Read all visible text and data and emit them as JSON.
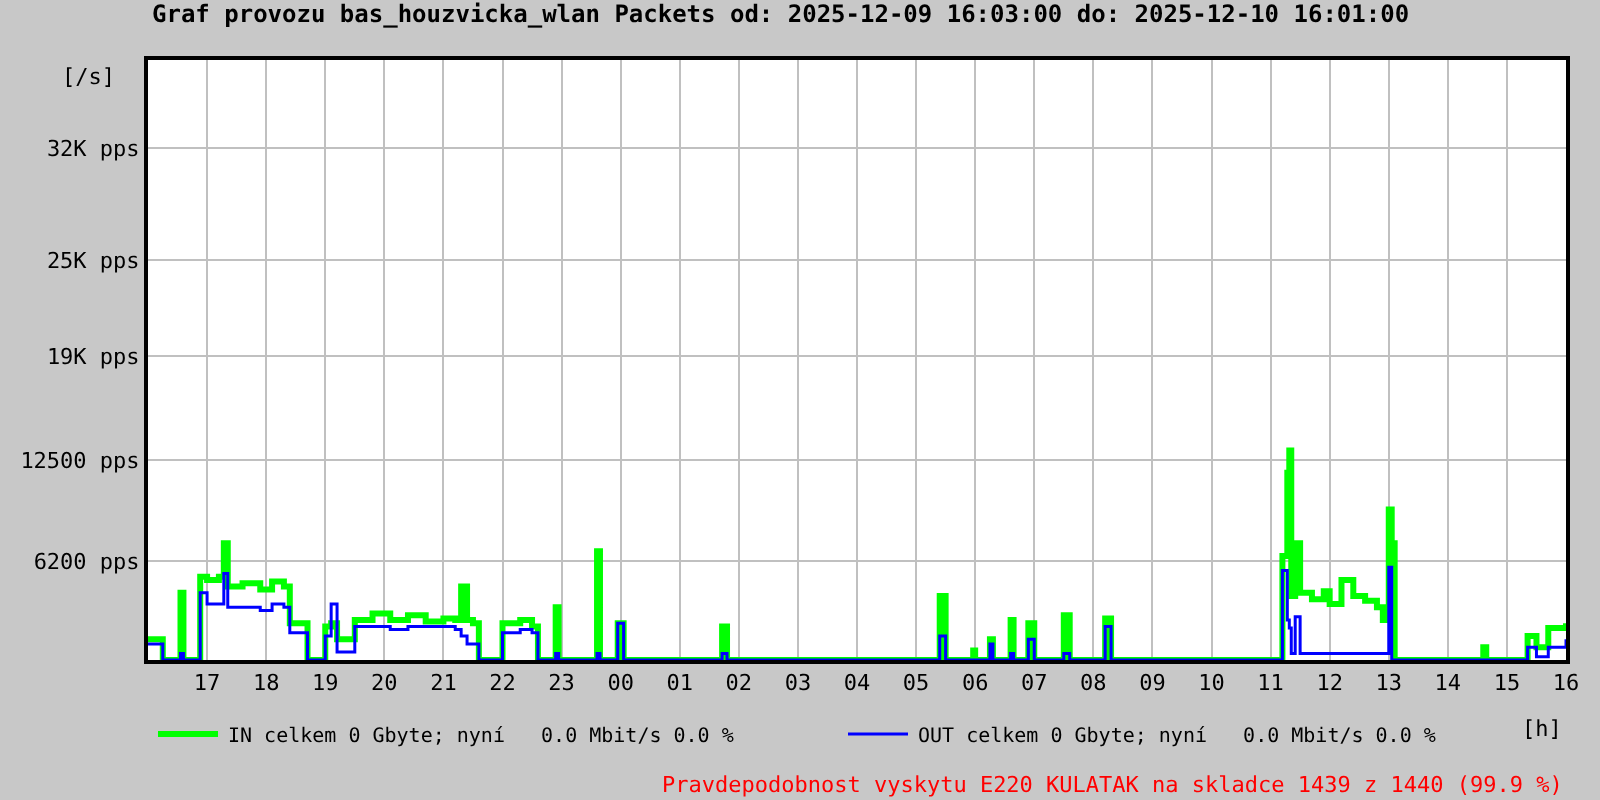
{
  "chart_data": {
    "type": "step",
    "title": "Graf provozu bas_houzvicka_wlan Packets od: 2025-12-09 16:03:00 do: 2025-12-10 16:01:00",
    "ylabel": "[/s]",
    "xlabel": "[h]",
    "x": [
      "2025-12-09T16:00",
      "2025-12-09T16:12",
      "2025-12-09T16:15",
      "2025-12-09T16:30",
      "2025-12-09T16:33",
      "2025-12-09T16:36",
      "2025-12-09T16:51",
      "2025-12-09T16:53",
      "2025-12-09T17:00",
      "2025-12-09T17:12",
      "2025-12-09T17:17",
      "2025-12-09T17:21",
      "2025-12-09T17:36",
      "2025-12-09T17:54",
      "2025-12-09T18:06",
      "2025-12-09T18:18",
      "2025-12-09T18:24",
      "2025-12-09T18:36",
      "2025-12-09T18:42",
      "2025-12-09T18:57",
      "2025-12-09T19:00",
      "2025-12-09T19:06",
      "2025-12-09T19:12",
      "2025-12-09T19:24",
      "2025-12-09T19:30",
      "2025-12-09T19:48",
      "2025-12-09T20:06",
      "2025-12-09T20:24",
      "2025-12-09T20:42",
      "2025-12-09T21:00",
      "2025-12-09T21:12",
      "2025-12-09T21:18",
      "2025-12-09T21:24",
      "2025-12-09T21:30",
      "2025-12-09T21:36",
      "2025-12-09T21:57",
      "2025-12-09T22:00",
      "2025-12-09T22:18",
      "2025-12-09T22:30",
      "2025-12-09T22:36",
      "2025-12-09T22:51",
      "2025-12-09T22:54",
      "2025-12-09T22:57",
      "2025-12-09T23:33",
      "2025-12-09T23:36",
      "2025-12-09T23:39",
      "2025-12-09T23:54",
      "2025-12-09T23:57",
      "2025-12-10T00:03",
      "2025-12-10T01:42",
      "2025-12-10T01:43",
      "2025-12-10T01:48",
      "2025-12-10T05:21",
      "2025-12-10T05:24",
      "2025-12-10T05:30",
      "2025-12-10T05:58",
      "2025-12-10T06:00",
      "2025-12-10T06:15",
      "2025-12-10T06:18",
      "2025-12-10T06:36",
      "2025-12-10T06:39",
      "2025-12-10T06:54",
      "2025-12-10T07:00",
      "2025-12-10T07:30",
      "2025-12-10T07:36",
      "2025-12-10T08:12",
      "2025-12-10T08:18",
      "2025-12-10T11:06",
      "2025-12-10T11:12",
      "2025-12-10T11:17",
      "2025-12-10T11:19",
      "2025-12-10T11:21",
      "2025-12-10T11:25",
      "2025-12-10T11:30",
      "2025-12-10T11:42",
      "2025-12-10T11:54",
      "2025-12-10T12:00",
      "2025-12-10T12:12",
      "2025-12-10T12:24",
      "2025-12-10T12:36",
      "2025-12-10T12:48",
      "2025-12-10T12:54",
      "2025-12-10T13:00",
      "2025-12-10T13:03",
      "2025-12-10T13:06",
      "2025-12-10T14:36",
      "2025-12-10T14:39",
      "2025-12-10T15:18",
      "2025-12-10T15:21",
      "2025-12-10T15:30",
      "2025-12-10T15:42",
      "2025-12-10T16:00"
    ],
    "series": [
      {
        "name": "IN celkem 0 Gbyte; nyní   0.0 Mbit/s 0.0 %",
        "color": "#00ff00",
        "values": [
          1300,
          1300,
          0,
          0,
          4200,
          0,
          0,
          5200,
          5000,
          5200,
          7300,
          4600,
          4800,
          4400,
          4900,
          4600,
          2300,
          2300,
          0,
          0,
          2100,
          2300,
          1300,
          1300,
          2500,
          2900,
          2500,
          2800,
          2400,
          2600,
          2500,
          4600,
          2500,
          2300,
          0,
          0,
          2300,
          2500,
          2100,
          0,
          0,
          3300,
          0,
          0,
          6800,
          0,
          0,
          2300,
          0,
          0,
          2100,
          0,
          0,
          4000,
          0,
          600,
          0,
          1300,
          0,
          2500,
          0,
          2300,
          0,
          2800,
          0,
          2600,
          0,
          0,
          6500,
          11700,
          13100,
          4000,
          7300,
          4200,
          3800,
          4300,
          3500,
          5000,
          4000,
          3700,
          3300,
          2500,
          9400,
          7300,
          0,
          800,
          0,
          0,
          1500,
          800,
          2000,
          2300
        ]
      },
      {
        "name": "OUT celkem 0 Gbyte; nyní   0.0 Mbit/s 0.0 %",
        "color": "#0000ff",
        "values": [
          1000,
          1000,
          0,
          0,
          400,
          0,
          0,
          4200,
          3500,
          3500,
          5400,
          3300,
          3300,
          3100,
          3500,
          3300,
          1700,
          1700,
          0,
          0,
          1500,
          3500,
          500,
          500,
          2100,
          2100,
          1900,
          2100,
          2100,
          2100,
          1900,
          1500,
          1000,
          1000,
          0,
          0,
          1700,
          1900,
          1700,
          0,
          0,
          400,
          0,
          0,
          400,
          0,
          0,
          2300,
          0,
          0,
          400,
          0,
          0,
          1500,
          0,
          0,
          0,
          1000,
          0,
          400,
          0,
          1300,
          0,
          400,
          0,
          2100,
          0,
          0,
          5600,
          2500,
          2000,
          400,
          2700,
          400,
          400,
          400,
          400,
          400,
          400,
          400,
          400,
          400,
          5800,
          0,
          0,
          0,
          0,
          0,
          800,
          200,
          800,
          1300
        ]
      }
    ],
    "xlim": [
      "2025-12-09T16:00",
      "2025-12-10T16:00"
    ],
    "xticks": [
      {
        "value": "2025-12-09T17:00",
        "label": "17"
      },
      {
        "value": "2025-12-09T18:00",
        "label": "18"
      },
      {
        "value": "2025-12-09T19:00",
        "label": "19"
      },
      {
        "value": "2025-12-09T20:00",
        "label": "20"
      },
      {
        "value": "2025-12-09T21:00",
        "label": "21"
      },
      {
        "value": "2025-12-09T22:00",
        "label": "22"
      },
      {
        "value": "2025-12-09T23:00",
        "label": "23"
      },
      {
        "value": "2025-12-10T00:00",
        "label": "00"
      },
      {
        "value": "2025-12-10T01:00",
        "label": "01"
      },
      {
        "value": "2025-12-10T02:00",
        "label": "02"
      },
      {
        "value": "2025-12-10T03:00",
        "label": "03"
      },
      {
        "value": "2025-12-10T04:00",
        "label": "04"
      },
      {
        "value": "2025-12-10T05:00",
        "label": "05"
      },
      {
        "value": "2025-12-10T06:00",
        "label": "06"
      },
      {
        "value": "2025-12-10T07:00",
        "label": "07"
      },
      {
        "value": "2025-12-10T08:00",
        "label": "08"
      },
      {
        "value": "2025-12-10T09:00",
        "label": "09"
      },
      {
        "value": "2025-12-10T10:00",
        "label": "10"
      },
      {
        "value": "2025-12-10T11:00",
        "label": "11"
      },
      {
        "value": "2025-12-10T12:00",
        "label": "12"
      },
      {
        "value": "2025-12-10T13:00",
        "label": "13"
      },
      {
        "value": "2025-12-10T14:00",
        "label": "14"
      },
      {
        "value": "2025-12-10T15:00",
        "label": "15"
      },
      {
        "value": "2025-12-10T16:00",
        "label": "16"
      }
    ],
    "ylim": [
      0,
      37500
    ],
    "yticks": [
      {
        "value": 6200,
        "label": "6200 pps"
      },
      {
        "value": 12500,
        "label": "12500 pps"
      },
      {
        "value": 19000,
        "label": "19K pps"
      },
      {
        "value": 25000,
        "label": "25K pps"
      },
      {
        "value": 32000,
        "label": "32K pps"
      }
    ],
    "grid": true,
    "legend": "bottom",
    "line_style": "solid",
    "annotations": [
      "Pravdepodobnost vyskytu E220 KULATAK na skladce 1439 z 1440 (99.9 %)"
    ]
  }
}
